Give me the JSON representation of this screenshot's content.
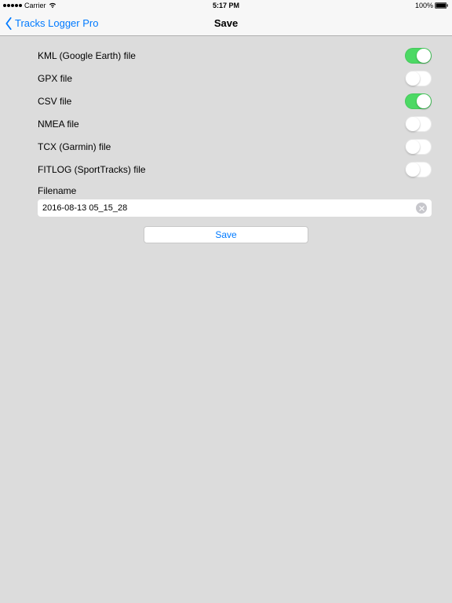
{
  "statusbar": {
    "carrier": "Carrier",
    "time": "5:17 PM",
    "battery_pct": "100%"
  },
  "nav": {
    "back_label": "Tracks Logger Pro",
    "title": "Save"
  },
  "formats": [
    {
      "label": "KML (Google Earth) file",
      "enabled": true
    },
    {
      "label": "GPX file",
      "enabled": false
    },
    {
      "label": "CSV file",
      "enabled": true
    },
    {
      "label": "NMEA file",
      "enabled": false
    },
    {
      "label": "TCX (Garmin) file",
      "enabled": false
    },
    {
      "label": "FITLOG (SportTracks) file",
      "enabled": false
    }
  ],
  "filename": {
    "label": "Filename",
    "value": "2016-08-13 05_15_28"
  },
  "save_button_label": "Save",
  "colors": {
    "background": "#dcdcdc",
    "nav_background": "#f7f7f7",
    "tint": "#007aff",
    "toggle_on": "#4cd964",
    "toggle_off": "#ffffff",
    "field_background": "#ffffff",
    "clear_button": "#c7c7cc"
  },
  "typography": {
    "row_label_fontsize": 12,
    "nav_title_fontsize": 13,
    "nav_back_fontsize": 13,
    "status_fontsize": 9,
    "input_fontsize": 11,
    "button_fontsize": 12
  }
}
